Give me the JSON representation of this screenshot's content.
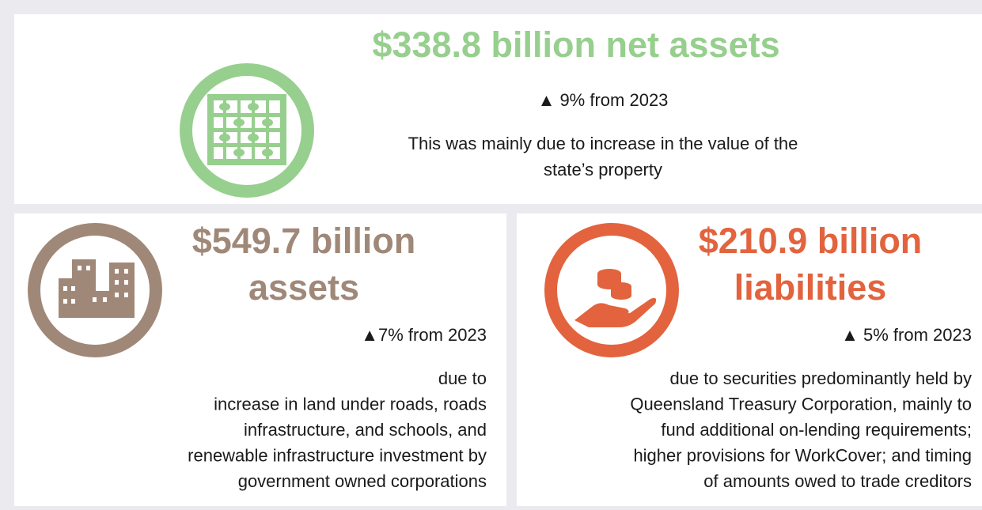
{
  "net_assets": {
    "title": "$338.8 billion net assets",
    "change": "▲ 9% from 2023",
    "description": [
      "This was mainly due to increase in the value of the",
      "state’s property"
    ]
  },
  "assets": {
    "title": [
      "$549.7 billion",
      "assets"
    ],
    "change": "▲7% from 2023",
    "description": [
      "due to",
      "increase in land under roads, roads",
      "infrastructure, and schools, and",
      "renewable infrastructure investment by",
      "government owned corporations"
    ]
  },
  "liabilities": {
    "title": [
      "$210.9 billion",
      "liabilities"
    ],
    "change": "▲ 5% from 2023",
    "description": [
      "due to securities predominantly held by",
      "Queensland Treasury Corporation, mainly to",
      "fund additional on-lending requirements;",
      "higher provisions for WorkCover; and timing",
      "of amounts owed to trade creditors"
    ]
  }
}
